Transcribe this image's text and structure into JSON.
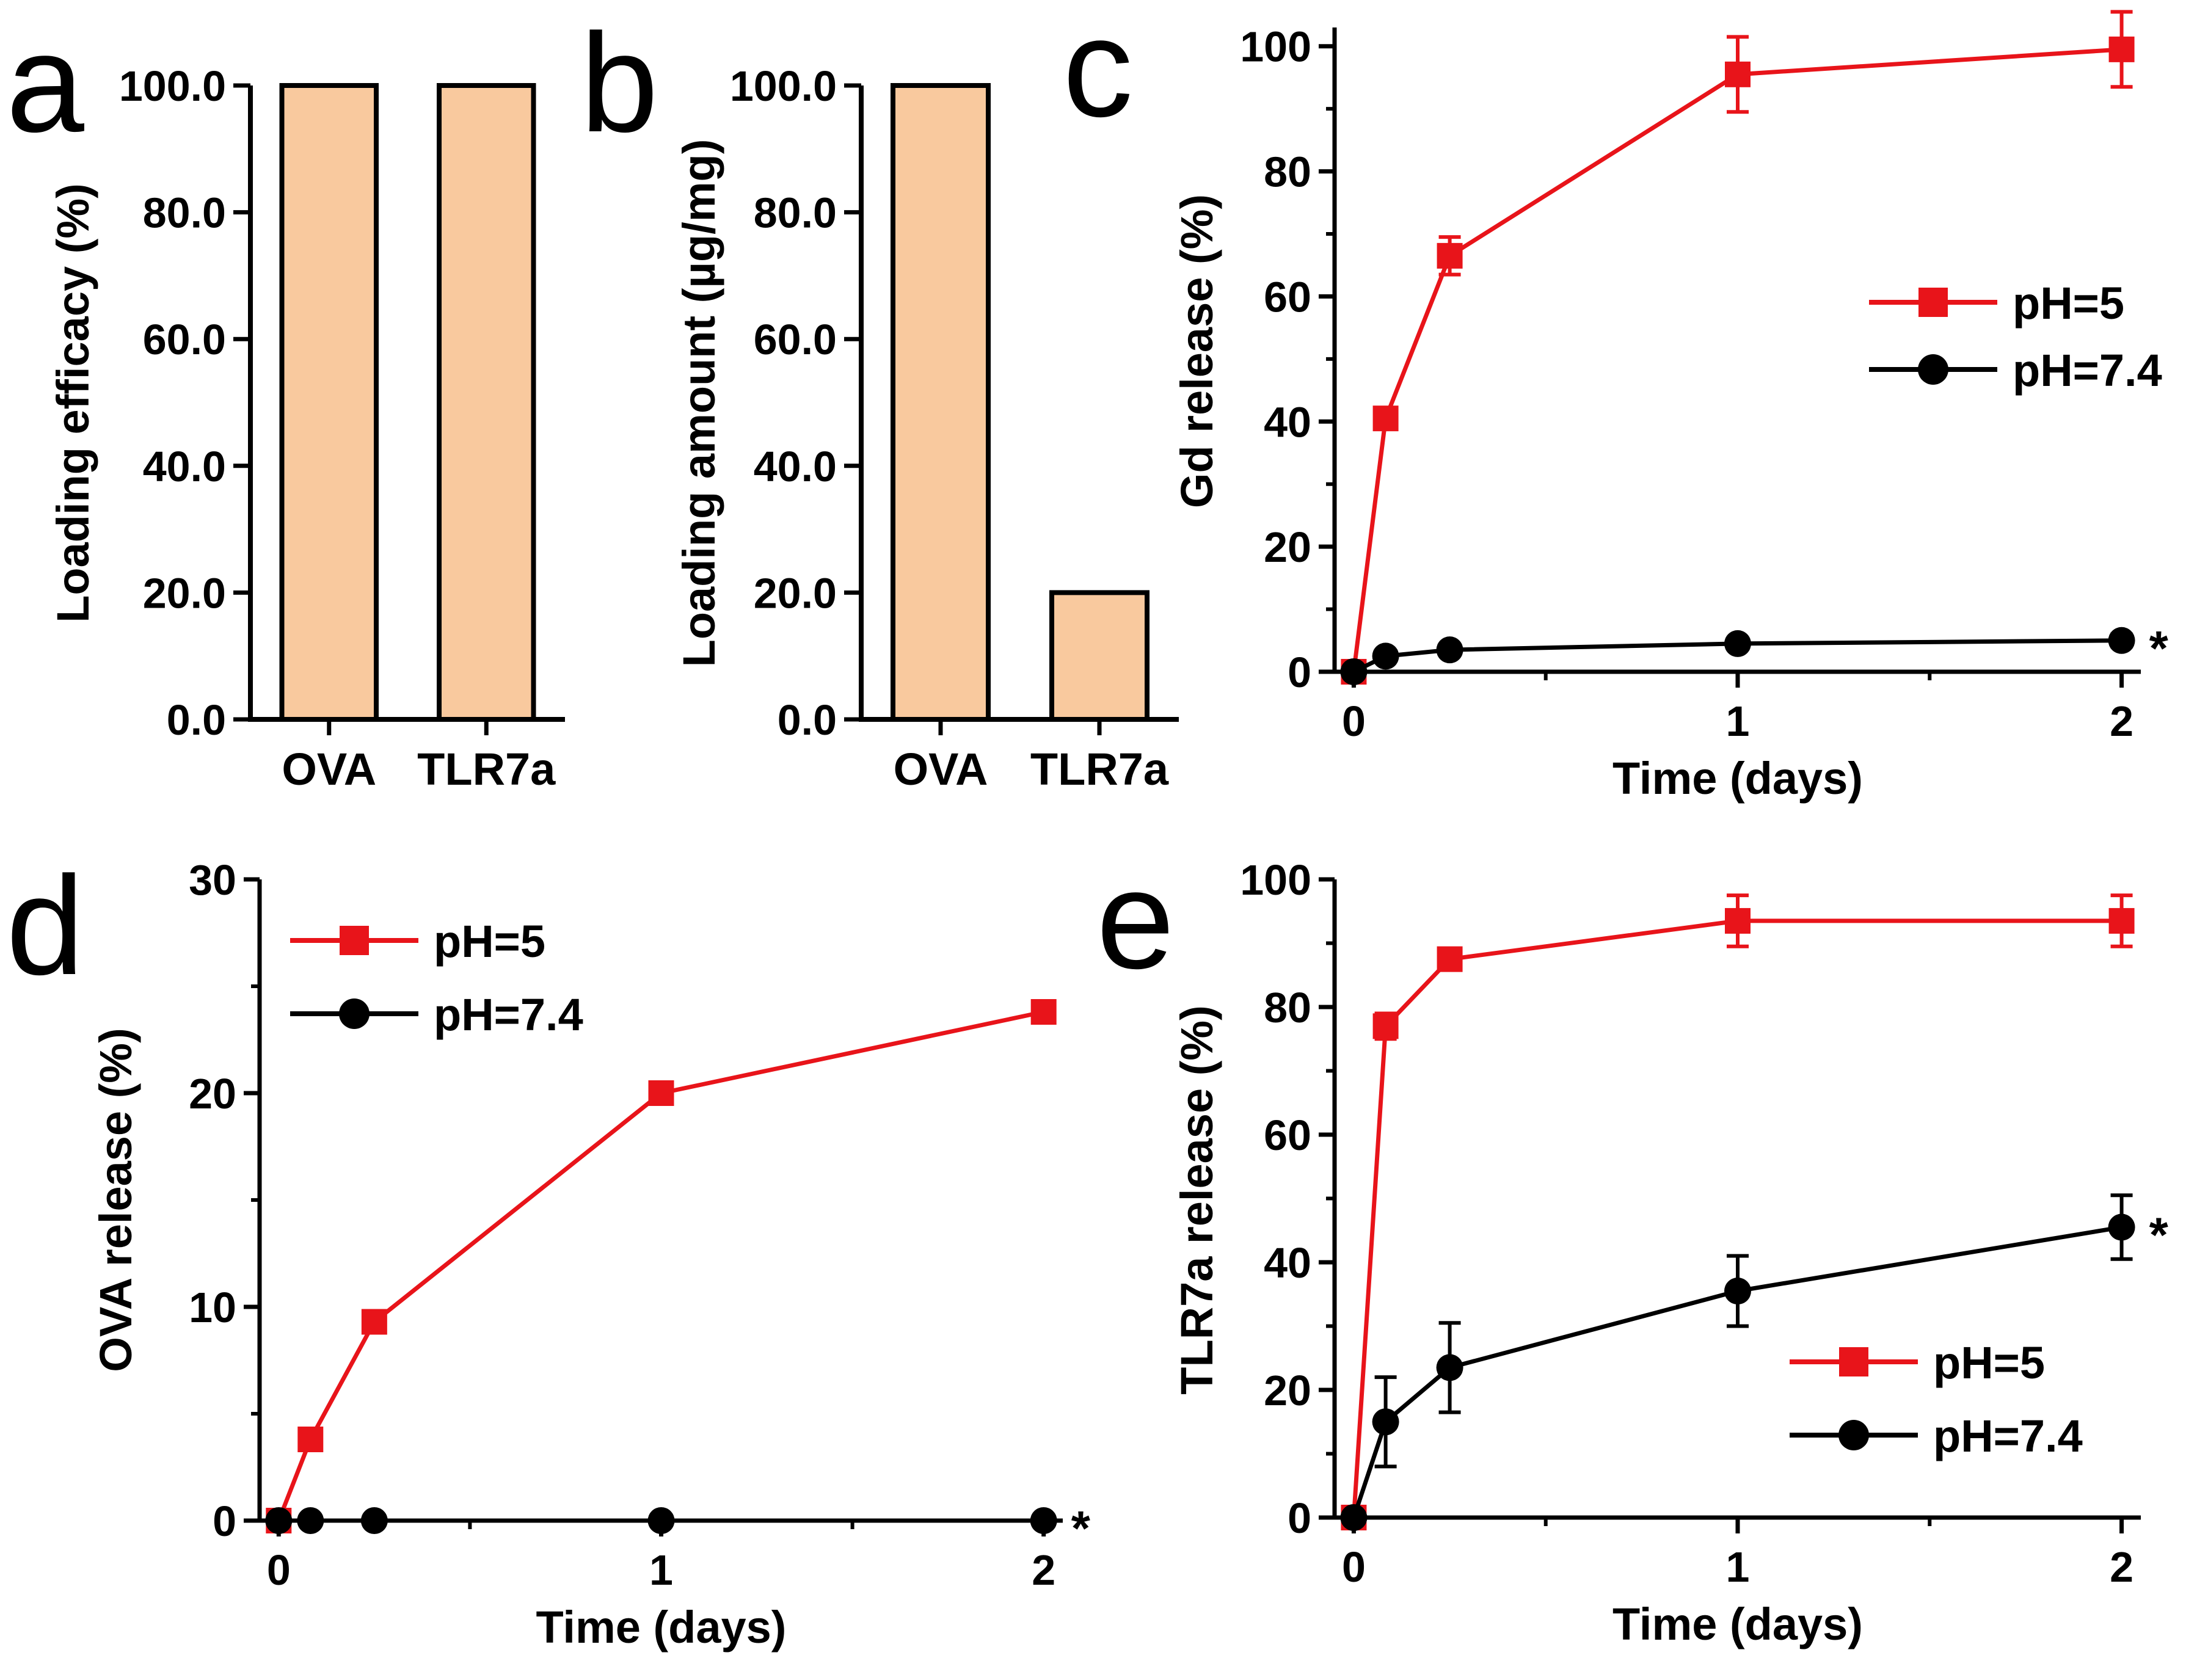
{
  "colors": {
    "bar_fill": "#f9c99e",
    "bar_stroke": "#000000",
    "red": "#e8141a",
    "black": "#000000"
  },
  "chart_data": [
    {
      "id": "a",
      "type": "bar",
      "letter": "a",
      "categories": [
        "OVA",
        "TLR7a"
      ],
      "values": [
        100.0,
        100.0
      ],
      "ylabel": "Loading efficacy (%)",
      "ylim": [
        0,
        100
      ],
      "yticks": [
        "0.0",
        "20.0",
        "40.0",
        "60.0",
        "80.0",
        "100.0"
      ]
    },
    {
      "id": "b",
      "type": "bar",
      "letter": "b",
      "categories": [
        "OVA",
        "TLR7a"
      ],
      "values": [
        100.0,
        20.0
      ],
      "ylabel": "Loading amount (µg/mg)",
      "ylim": [
        0,
        100
      ],
      "yticks": [
        "0.0",
        "20.0",
        "40.0",
        "60.0",
        "80.0",
        "100.0"
      ]
    },
    {
      "id": "c",
      "type": "line",
      "letter": "c",
      "xlabel": "Time (days)",
      "ylabel": "Gd release (%)",
      "xlim": [
        -0.05,
        2.05
      ],
      "ylim": [
        0,
        103
      ],
      "xticks": [
        "0",
        "1",
        "2"
      ],
      "yticks": [
        "0",
        "20",
        "40",
        "60",
        "80",
        "100"
      ],
      "legend_position": "right",
      "series": [
        {
          "name": "pH=5",
          "marker": "square",
          "x": [
            0,
            0.083,
            0.25,
            1,
            2
          ],
          "y": [
            0,
            40.5,
            66.5,
            95.5,
            99.5
          ],
          "err": [
            0,
            1.5,
            3,
            6,
            6
          ]
        },
        {
          "name": "pH=7.4",
          "marker": "circle",
          "x": [
            0,
            0.083,
            0.25,
            1,
            2
          ],
          "y": [
            0,
            2.5,
            3.5,
            4.5,
            5
          ],
          "err": [
            0,
            0.5,
            0.5,
            0.8,
            1
          ]
        }
      ],
      "annotation": "*"
    },
    {
      "id": "d",
      "type": "line",
      "letter": "d",
      "xlabel": "Time (days)",
      "ylabel": "OVA release (%)",
      "xlim": [
        -0.05,
        2.05
      ],
      "ylim": [
        0,
        30
      ],
      "xticks": [
        "0",
        "1",
        "2"
      ],
      "yticks": [
        "0",
        "10",
        "20",
        "30"
      ],
      "legend_position": "top-left",
      "series": [
        {
          "name": "pH=5",
          "marker": "square",
          "x": [
            0,
            0.083,
            0.25,
            1,
            2
          ],
          "y": [
            0,
            3.8,
            9.3,
            20.0,
            23.8
          ],
          "err": [
            0,
            0.3,
            0.4,
            0.5,
            0.5
          ]
        },
        {
          "name": "pH=7.4",
          "marker": "circle",
          "x": [
            0,
            0.083,
            0.25,
            1,
            2
          ],
          "y": [
            0,
            0,
            0,
            0,
            0
          ],
          "err": [
            0,
            0,
            0,
            0,
            0
          ]
        }
      ],
      "annotation": "*"
    },
    {
      "id": "e",
      "type": "line",
      "letter": "e",
      "xlabel": "Time (days)",
      "ylabel": "TLR7a release (%)",
      "xlim": [
        -0.05,
        2.05
      ],
      "ylim": [
        0,
        100
      ],
      "xticks": [
        "0",
        "1",
        "2"
      ],
      "yticks": [
        "0",
        "20",
        "40",
        "60",
        "80",
        "100"
      ],
      "legend_position": "bottom-right",
      "series": [
        {
          "name": "pH=5",
          "marker": "square",
          "x": [
            0,
            0.083,
            0.25,
            1,
            2
          ],
          "y": [
            0,
            77,
            87.5,
            93.5,
            93.5
          ],
          "err": [
            0,
            2,
            1.5,
            4,
            4
          ]
        },
        {
          "name": "pH=7.4",
          "marker": "circle",
          "x": [
            0,
            0.083,
            0.25,
            1,
            2
          ],
          "y": [
            0,
            15,
            23.5,
            35.5,
            45.5
          ],
          "err": [
            0,
            7,
            7,
            5.5,
            5
          ]
        }
      ],
      "annotation": "*"
    }
  ]
}
